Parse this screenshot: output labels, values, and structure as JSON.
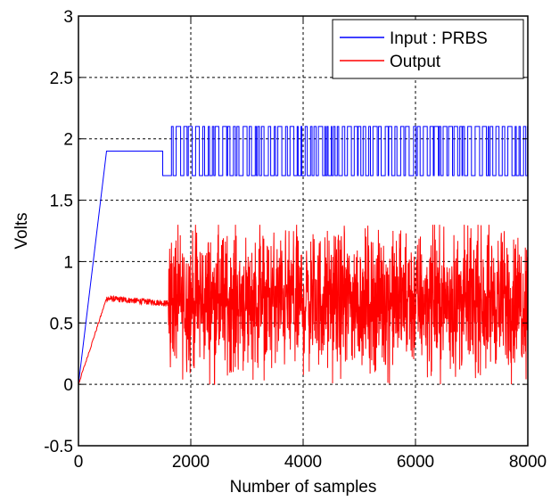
{
  "chart_data": {
    "type": "line",
    "title": "",
    "xlabel": "Number of samples",
    "ylabel": "Volts",
    "xlim": [
      0,
      8000
    ],
    "ylim": [
      -0.5,
      3
    ],
    "xticks": [
      0,
      2000,
      4000,
      6000,
      8000
    ],
    "xtick_labels": [
      "0",
      "2000",
      "4000",
      "6000",
      "8000"
    ],
    "yticks": [
      -0.5,
      0,
      0.5,
      1,
      1.5,
      2,
      2.5,
      3
    ],
    "ytick_labels": [
      "-0.5",
      "0",
      "0.5",
      "1",
      "1.5",
      "2",
      "2.5",
      "3"
    ],
    "grid": true,
    "grid_style": "dotted",
    "legend_position": "top-right",
    "series": [
      {
        "name": "Input : PRBS",
        "color": "#0000ff",
        "description": "Ramp 0 to 1.9 V over samples 0-500, hold 1.9 V until sample 1500, step to 1.7 V until 1600, then PRBS switching between 1.7 V and 2.1 V through sample 8000",
        "x": [
          0,
          500,
          1500,
          1500,
          1600
        ],
        "y": [
          0,
          1.9,
          1.9,
          1.7,
          1.7
        ],
        "prbs": {
          "x_start": 1600,
          "x_end": 8000,
          "low": 1.7,
          "high": 2.1
        }
      },
      {
        "name": "Output",
        "color": "#ff0000",
        "description": "Ramp 0 to ~0.7 V over samples 0-500, settle around 0.68 V with small ripple until 1600, then noisy response mostly between 0.25 V and 1.1 V with peaks up to ~1.3 V and dips to ~0.0 V",
        "x": [
          0,
          500,
          1500,
          1600
        ],
        "y": [
          0,
          0.7,
          0.66,
          0.65
        ],
        "noise": {
          "x_start": 1600,
          "x_end": 8000,
          "mean": 0.68,
          "min": 0.0,
          "max": 1.3
        }
      }
    ]
  }
}
